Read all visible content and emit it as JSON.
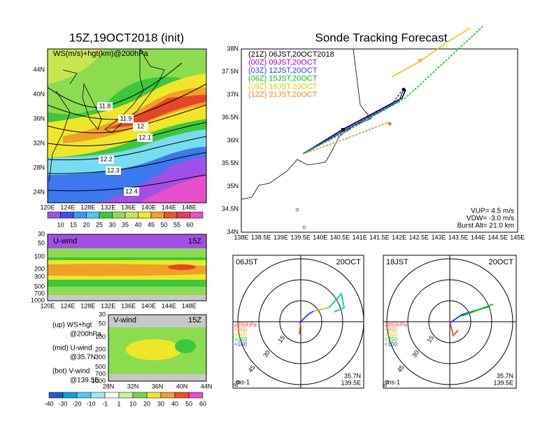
{
  "left": {
    "title": "15Z,19OCT2018 (init)",
    "map": {
      "label": "WS(m/s)+hgt(km)@200hPa",
      "lat_labels": [
        "44N",
        "40N",
        "36N",
        "32N",
        "28N",
        "24N"
      ],
      "lon_labels": [
        "120E",
        "124E",
        "128E",
        "132E",
        "136E",
        "140E",
        "144E",
        "148E"
      ],
      "contour_labels": [
        "11.8",
        "11.9",
        "12",
        "12.1",
        "12.2",
        "12.3",
        "12.4"
      ]
    },
    "ws_colorbar": [
      "10",
      "15",
      "20",
      "25",
      "30",
      "35",
      "40",
      "45",
      "50",
      "55",
      "60"
    ],
    "u_wind": {
      "label": "U-wind",
      "time": "15Z",
      "p_labels": [
        "30",
        "50",
        "100",
        "200",
        "300",
        "500",
        "700",
        "1000"
      ],
      "lon_labels": [
        "120E",
        "124E",
        "128E",
        "132E",
        "136E",
        "140E",
        "144E",
        "148E"
      ]
    },
    "v_wind": {
      "label": "V-wind",
      "time": "15Z",
      "p_labels": [
        "30",
        "50",
        "100",
        "200",
        "300",
        "500",
        "700",
        "1000"
      ],
      "lat_labels": [
        "28N",
        "32N",
        "36N",
        "40N",
        "44N"
      ]
    },
    "legend": [
      "(up) WS+hgt",
      "@200hPa",
      "(mid) U-wind",
      "@35.7N",
      "(bot) V-wind",
      "@139.5E"
    ],
    "wind_colorbar": [
      "-40",
      "-30",
      "-20",
      "-10",
      "-1",
      "1",
      "10",
      "20",
      "30",
      "40",
      "50",
      "60"
    ]
  },
  "right": {
    "title": "Sonde Tracking Forecast",
    "lat_labels": [
      "38N",
      "37.5N",
      "37N",
      "36.5N",
      "36N",
      "35.5N",
      "35N",
      "34.5N",
      "34N"
    ],
    "lon_labels": [
      "138E",
      "138.5E",
      "139E",
      "139.5E",
      "140E",
      "140.5E",
      "141E",
      "141.5E",
      "142E",
      "142.5E",
      "143E",
      "143.5E",
      "144E",
      "144.5E",
      "145E"
    ],
    "legend": [
      {
        "text": "(21Z) 06JST,20OCT2018",
        "color": "#000000"
      },
      {
        "text": "(00Z) 09JST,20OCT",
        "color": "#a000c8"
      },
      {
        "text": "(03Z) 12JST,20OCT",
        "color": "#1e3cff"
      },
      {
        "text": "(06Z) 15JST,20OCT",
        "color": "#00c800"
      },
      {
        "text": "(09Z) 18JST,20OCT",
        "color": "#e6c800"
      },
      {
        "text": "(12Z) 21JST,20OCT",
        "color": "#f08228"
      }
    ],
    "params": [
      "VUP= 4.5 m/s",
      "VDW= -3.0 m/s",
      "Burst Alt= 21.0 km"
    ],
    "hodographs": [
      {
        "time": "06JST",
        "date": "20OCT",
        "units": "ms-1",
        "lat": "35.7N",
        "lon": "139.5E"
      },
      {
        "time": "18JST",
        "date": "20OCT",
        "units": "ms-1",
        "lat": "35.7N",
        "lon": "139.5E"
      }
    ],
    "rings": [
      "15",
      "30",
      "45",
      "60"
    ],
    "levels": [
      {
        "text": "≥850hPa",
        "color": "#ff3c3c"
      },
      {
        "text": "<850",
        "color": "#f08228"
      },
      {
        "text": "<500",
        "color": "#c8c800"
      },
      {
        "text": "<250",
        "color": "#00c800"
      },
      {
        "text": "<100",
        "color": "#1e3cff"
      }
    ]
  }
}
